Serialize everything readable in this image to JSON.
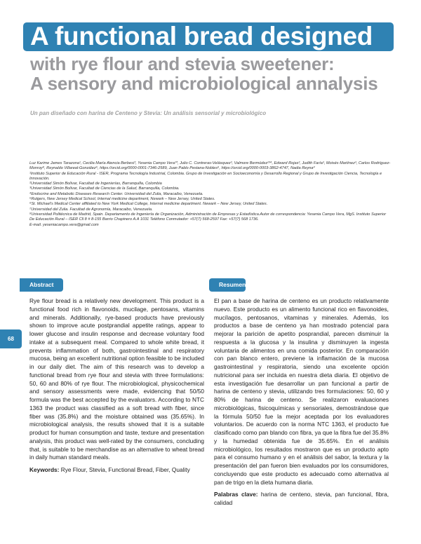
{
  "title": {
    "line1": "A functional bread designed",
    "line2": "with rye flour and stevia sweetener:",
    "line3": "A sensory and microbiological annalysis",
    "spanish": "Un pan diseñado con harina de Centeno y Stevia: Un análisis sensorial y microbiológico"
  },
  "authors": "Luz Karime James Tarazona¹, Cecilia María Atencia Berbesí², Yesenia Campo Vera¹*, Julio C. Contreras-Velásquez³, Valmore Bermúdez²³⁴, Edward Rojas³, Judith Faría³, Moisés Martínez³, Carlos Rodríguez- Monroy⁸, Reynaldo Villareal-González⁶, https://orcid.org/0000-0001-7346-2589, Juan Pablo Pestana-Nobles⁶, https://orcid.org/0000-0003-3862-4747, Nadia Reyna⁴",
  "affiliations": [
    "¹Instituto Superior de Educación Rural - ISER, Programa Tecnología Industrial, Colombia. Grupo de Investigación en Socioeconomía y Desarrollo Regional y Grupo de Investigación Ciencia, Tecnología e Innovación.",
    "²Universidad Simón Bolívar, Facultad de Ingenierías, Barranquilla, Colombia",
    "³Universidad Simón Bolívar, Facultad de Ciencias de la Salud, Barranquilla, Colombia.",
    "⁴Endocrine and Metabolic Diseases Research Center. Universidad del Zulia, Maracaibo, Venezuela.",
    "⁵Rutgers, New Jersey Medical School, Internal medicine department, Newark – New Jersey, United States.",
    "⁶St. Michael's Medical Center affiliated to New York Medical College, Internal medicine department. Newark – New Jersey, United States.",
    "⁷Universidad del Zulia. Facultad de Agronomía, Maracaibo, Venezuela.",
    "⁸Universidad Politécnica de Madrid, Spain. Departamento de Ingeniería de Organización, Administración de Empresas y Estadística.Autor de correspondencia: Yesenia Campo Vera, MgS. Instituto Superior De Educación Rural – ISER Cll 8 # 8-155 Barrio Chapinero A.A 1031 Teléfono Conmutador: +57(7) 568-2597 Fax: +57(7) 568 1736.",
    "E-mail. yeseniacampo.vera@gmail.com"
  ],
  "page_number": "68",
  "abstract": {
    "heading": "Abstract",
    "text": "Rye flour bread is a relatively new development. This product is a functional food rich in flavonoids, mucilage, pentosans, vitamins and minerals. Additionally, rye-based products have previously shown to improve acute postprandial appetite ratings, appear to lower glucose and insulin response and decrease voluntary food intake at a subsequent meal. Compared to whole white bread, it prevents inflammation of both, gastrointestinal and respiratory mucosa, being an excellent nutritional option feasible to be included in our daily diet. The aim of this research was to develop a functional bread from rye flour and stevia with three formulations: 50, 60 and 80% of rye flour. The microbiological, physicochemical and sensory assessments were made, evidencing that 50/50 formula was the best accepted by the evaluators. According to NTC 1363 the product was classified as a soft bread with fiber, since fiber was (35.8%) and the moisture obtained was (35.65%). In microbiological analysis, the results showed that it is a suitable product for human consumption and taste, texture and presentation analysis, this product was well-rated by the consumers, concluding that, is suitable to be merchandise as an alternative to wheat bread in daily human standard meals.",
    "keywords_label": "Keywords:",
    "keywords": " Rye Flour, Stevia, Functional Bread, Fiber, Quality"
  },
  "resumen": {
    "heading": "Resumen",
    "text": "El pan a base de harina de centeno es un producto relativamente nuevo. Este producto es un alimento funcional rico en flavonoides, mucílagos, pentosanos, vitaminas y minerales. Además, los productos a base de centeno ya han mostrado potencial para mejorar la parición de apetito posprandial, parecen disminuir la respuesta a la glucosa y la insulina y disminuyen la ingesta voluntaria de alimentos en una comida posterior. En comparación con pan blanco entero, previene la inflamación de la mucosa gastrointestinal y respiratoria, siendo una excelente opción nutricional para ser incluida en nuestra dieta diaria. El objetivo de esta investigación fue desarrollar un pan funcional a partir de harina de centeno y stevia, utilizando tres formulaciones: 50, 60 y 80% de harina de centeno. Se realizaron evaluaciones microbiológicas, fisicoquímicas y sensoriales, demostrándose que la fórmula 50/50 fue la mejor aceptada por los evaluadores voluntarios. De acuerdo con la norma NTC 1363, el producto fue clasificado como pan blando con fibra, ya que la fibra fue del 35.8% y la humedad obtenida fue de 35.65%. En el análisis microbiológico, los resultados mostraron que es un producto apto para el consumo humano y en el análisis del sabor, la textura y la presentación del pan fueron bien evaluados por los consumidores, concluyendo que este producto es adecuado como alternativa al pan de trigo en la dieta humana diaria.",
    "keywords_label": "Palabras clave:",
    "keywords": " harina de centeno, stevia, pan funcional, fibra, calidad"
  },
  "colors": {
    "accent": "#2f82b3",
    "subtitle_gray": "#9a9a9d"
  }
}
